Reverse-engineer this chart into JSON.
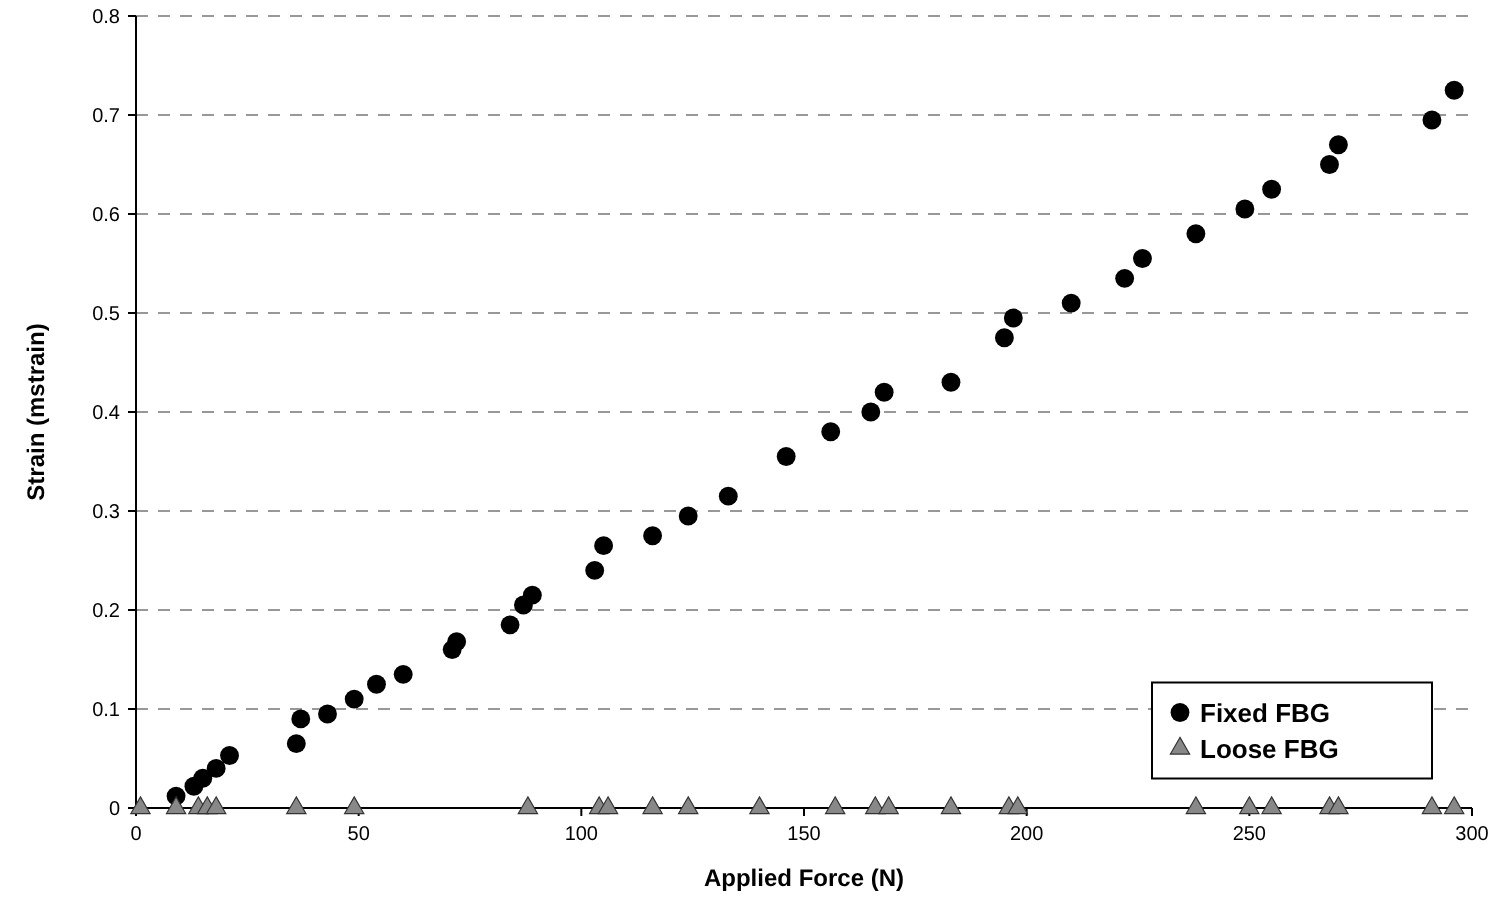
{
  "chart_data": {
    "type": "scatter",
    "xlabel": "Applied Force (N)",
    "ylabel": "Strain (mstrain)",
    "xlim": [
      0,
      300
    ],
    "ylim": [
      0,
      0.8
    ],
    "xticks": [
      0,
      50,
      100,
      150,
      200,
      250,
      300
    ],
    "yticks": [
      0,
      0.1,
      0.2,
      0.3,
      0.4,
      0.5,
      0.6,
      0.7,
      0.8
    ],
    "grid": "y",
    "legend": "bottom right",
    "series": [
      {
        "name": "Fixed FBG",
        "color": "#000000",
        "marker": "circle",
        "x": [
          9,
          13,
          15,
          18,
          21,
          36,
          37,
          43,
          49,
          54,
          60,
          71,
          72,
          84,
          87,
          89,
          103,
          105,
          116,
          124,
          133,
          146,
          156,
          165,
          168,
          183,
          195,
          197,
          210,
          222,
          226,
          238,
          249,
          255,
          268,
          270,
          291,
          296
        ],
        "values": [
          0.012,
          0.022,
          0.03,
          0.04,
          0.053,
          0.065,
          0.09,
          0.095,
          0.11,
          0.125,
          0.135,
          0.16,
          0.168,
          0.185,
          0.205,
          0.215,
          0.24,
          0.265,
          0.275,
          0.295,
          0.315,
          0.355,
          0.38,
          0.4,
          0.42,
          0.43,
          0.475,
          0.495,
          0.51,
          0.535,
          0.555,
          0.58,
          0.605,
          0.625,
          0.65,
          0.67,
          0.695,
          0.725
        ]
      },
      {
        "name": "Loose FBG",
        "color": "#888888",
        "marker": "triangle",
        "x": [
          1,
          9,
          14,
          16,
          18,
          36,
          49,
          88,
          104,
          106,
          116,
          124,
          140,
          157,
          166,
          169,
          183,
          196,
          198,
          238,
          250,
          255,
          268,
          270,
          291,
          296
        ],
        "values": [
          0,
          0,
          0,
          0,
          0,
          0,
          0,
          0,
          0,
          0,
          0,
          0,
          0,
          0,
          0,
          0,
          0,
          0,
          0,
          0,
          0,
          0,
          0,
          0,
          0,
          0
        ]
      }
    ]
  }
}
